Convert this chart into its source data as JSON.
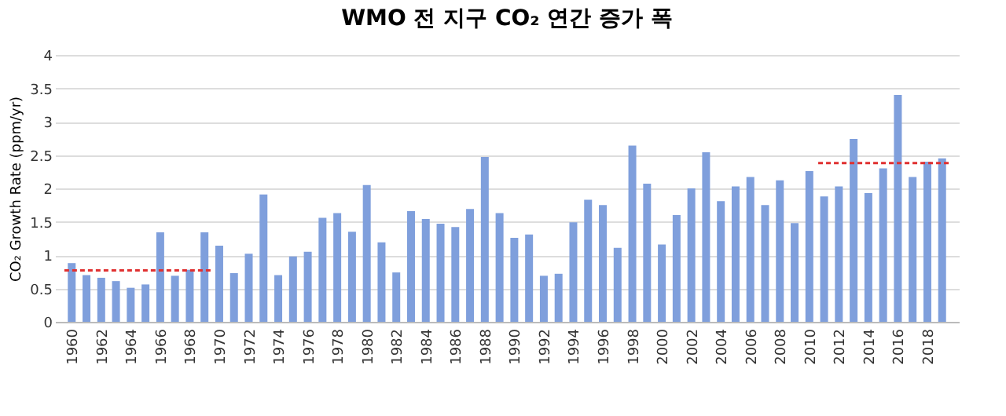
{
  "chart_data": {
    "type": "bar",
    "title": "WMO 전 지구 CO₂ 연간 증가 폭",
    "ylabel": "CO₂ Growth Rate (ppm/yr)",
    "x": [
      1960,
      1961,
      1962,
      1963,
      1964,
      1965,
      1966,
      1967,
      1968,
      1969,
      1970,
      1971,
      1972,
      1973,
      1974,
      1975,
      1976,
      1977,
      1978,
      1979,
      1980,
      1981,
      1982,
      1983,
      1984,
      1985,
      1986,
      1987,
      1988,
      1989,
      1990,
      1991,
      1992,
      1993,
      1994,
      1995,
      1996,
      1997,
      1998,
      1999,
      2000,
      2001,
      2002,
      2003,
      2004,
      2005,
      2006,
      2007,
      2008,
      2009,
      2010,
      2011,
      2012,
      2013,
      2014,
      2015,
      2016,
      2017,
      2018,
      2019
    ],
    "series": [
      {
        "color": "#7f9fdc",
        "values": [
          0.88,
          0.7,
          0.66,
          0.61,
          0.51,
          0.56,
          1.34,
          0.69,
          0.78,
          1.34,
          1.14,
          0.73,
          1.02,
          1.91,
          0.7,
          0.98,
          1.05,
          1.56,
          1.63,
          1.35,
          2.05,
          1.19,
          0.74,
          1.66,
          1.54,
          1.47,
          1.42,
          1.69,
          2.47,
          1.63,
          1.26,
          1.31,
          0.69,
          0.72,
          1.49,
          1.83,
          1.75,
          1.11,
          2.64,
          2.07,
          1.16,
          1.6,
          2.0,
          2.54,
          1.81,
          2.03,
          2.17,
          1.75,
          2.12,
          1.48,
          2.26,
          1.88,
          2.03,
          2.74,
          1.93,
          2.3,
          3.4,
          2.17,
          2.4,
          2.45
        ]
      },
      {
        "type": "line",
        "color": "#e03030",
        "line_style": "dashed",
        "x": [
          1959.5,
          1969.5
        ],
        "values": [
          0.77,
          0.77
        ]
      },
      {
        "type": "line",
        "color": "#e03030",
        "line_style": "dashed",
        "x": [
          2010.6,
          2019.5
        ],
        "values": [
          2.38,
          2.38
        ]
      }
    ],
    "xlim": [
      1959.4,
      2019.6
    ],
    "xticks": [
      1960,
      1962,
      1964,
      1966,
      1968,
      1970,
      1972,
      1974,
      1976,
      1978,
      1980,
      1982,
      1984,
      1986,
      1988,
      1990,
      1992,
      1994,
      1996,
      1998,
      2000,
      2002,
      2004,
      2006,
      2008,
      2010,
      2012,
      2014,
      2016,
      2018
    ],
    "ylim": [
      0,
      4
    ],
    "yticks": [
      0,
      0.5,
      1,
      1.5,
      2,
      2.5,
      3,
      3.5,
      4
    ],
    "grid": "y"
  }
}
